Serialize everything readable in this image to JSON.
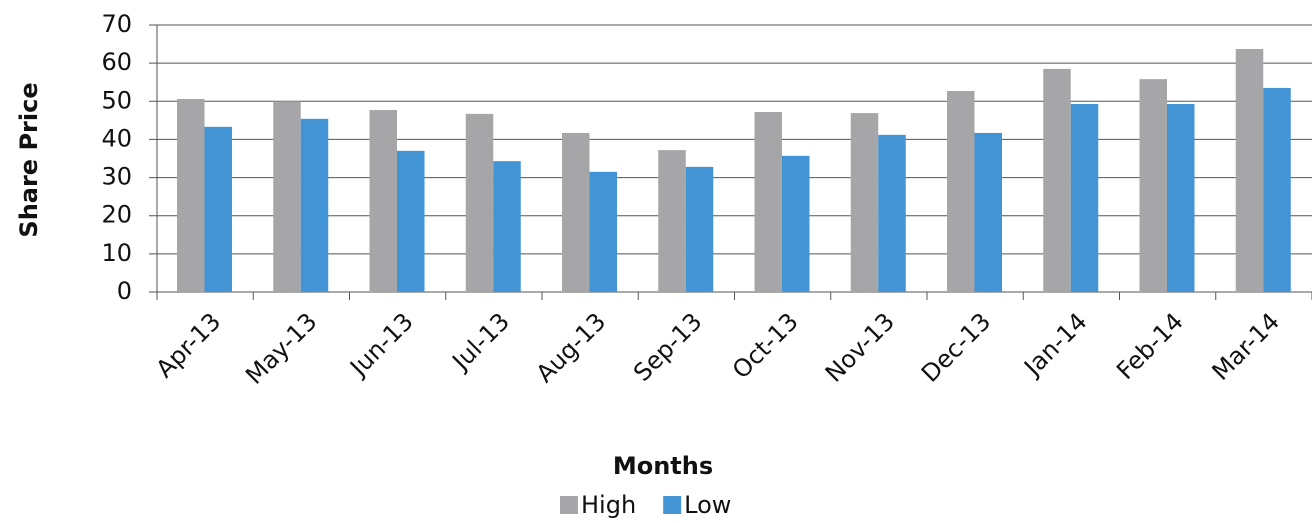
{
  "chart_data": {
    "type": "bar",
    "x_label": "Months",
    "y_label": "Share Price",
    "categories": [
      "Apr-13",
      "May-13",
      "Jun-13",
      "Jul-13",
      "Aug-13",
      "Sep-13",
      "Oct-13",
      "Nov-13",
      "Dec-13",
      "Jan-14",
      "Feb-14",
      "Mar-14"
    ],
    "series": [
      {
        "name": "High",
        "color": "#a6a6a8",
        "values": [
          50.6,
          50,
          47.7,
          46.7,
          41.7,
          37.2,
          47.2,
          46.9,
          52.7,
          58.5,
          55.8,
          63.7
        ]
      },
      {
        "name": "Low",
        "color": "#4394d4",
        "values": [
          43.3,
          45.4,
          37,
          34.3,
          31.5,
          32.8,
          35.7,
          41.2,
          41.7,
          49.3,
          49.3,
          53.5
        ]
      }
    ],
    "ylim": [
      0,
      70
    ],
    "yticks": [
      0,
      10,
      20,
      30,
      40,
      50,
      60,
      70
    ],
    "grid": true,
    "legend": "bottom"
  }
}
